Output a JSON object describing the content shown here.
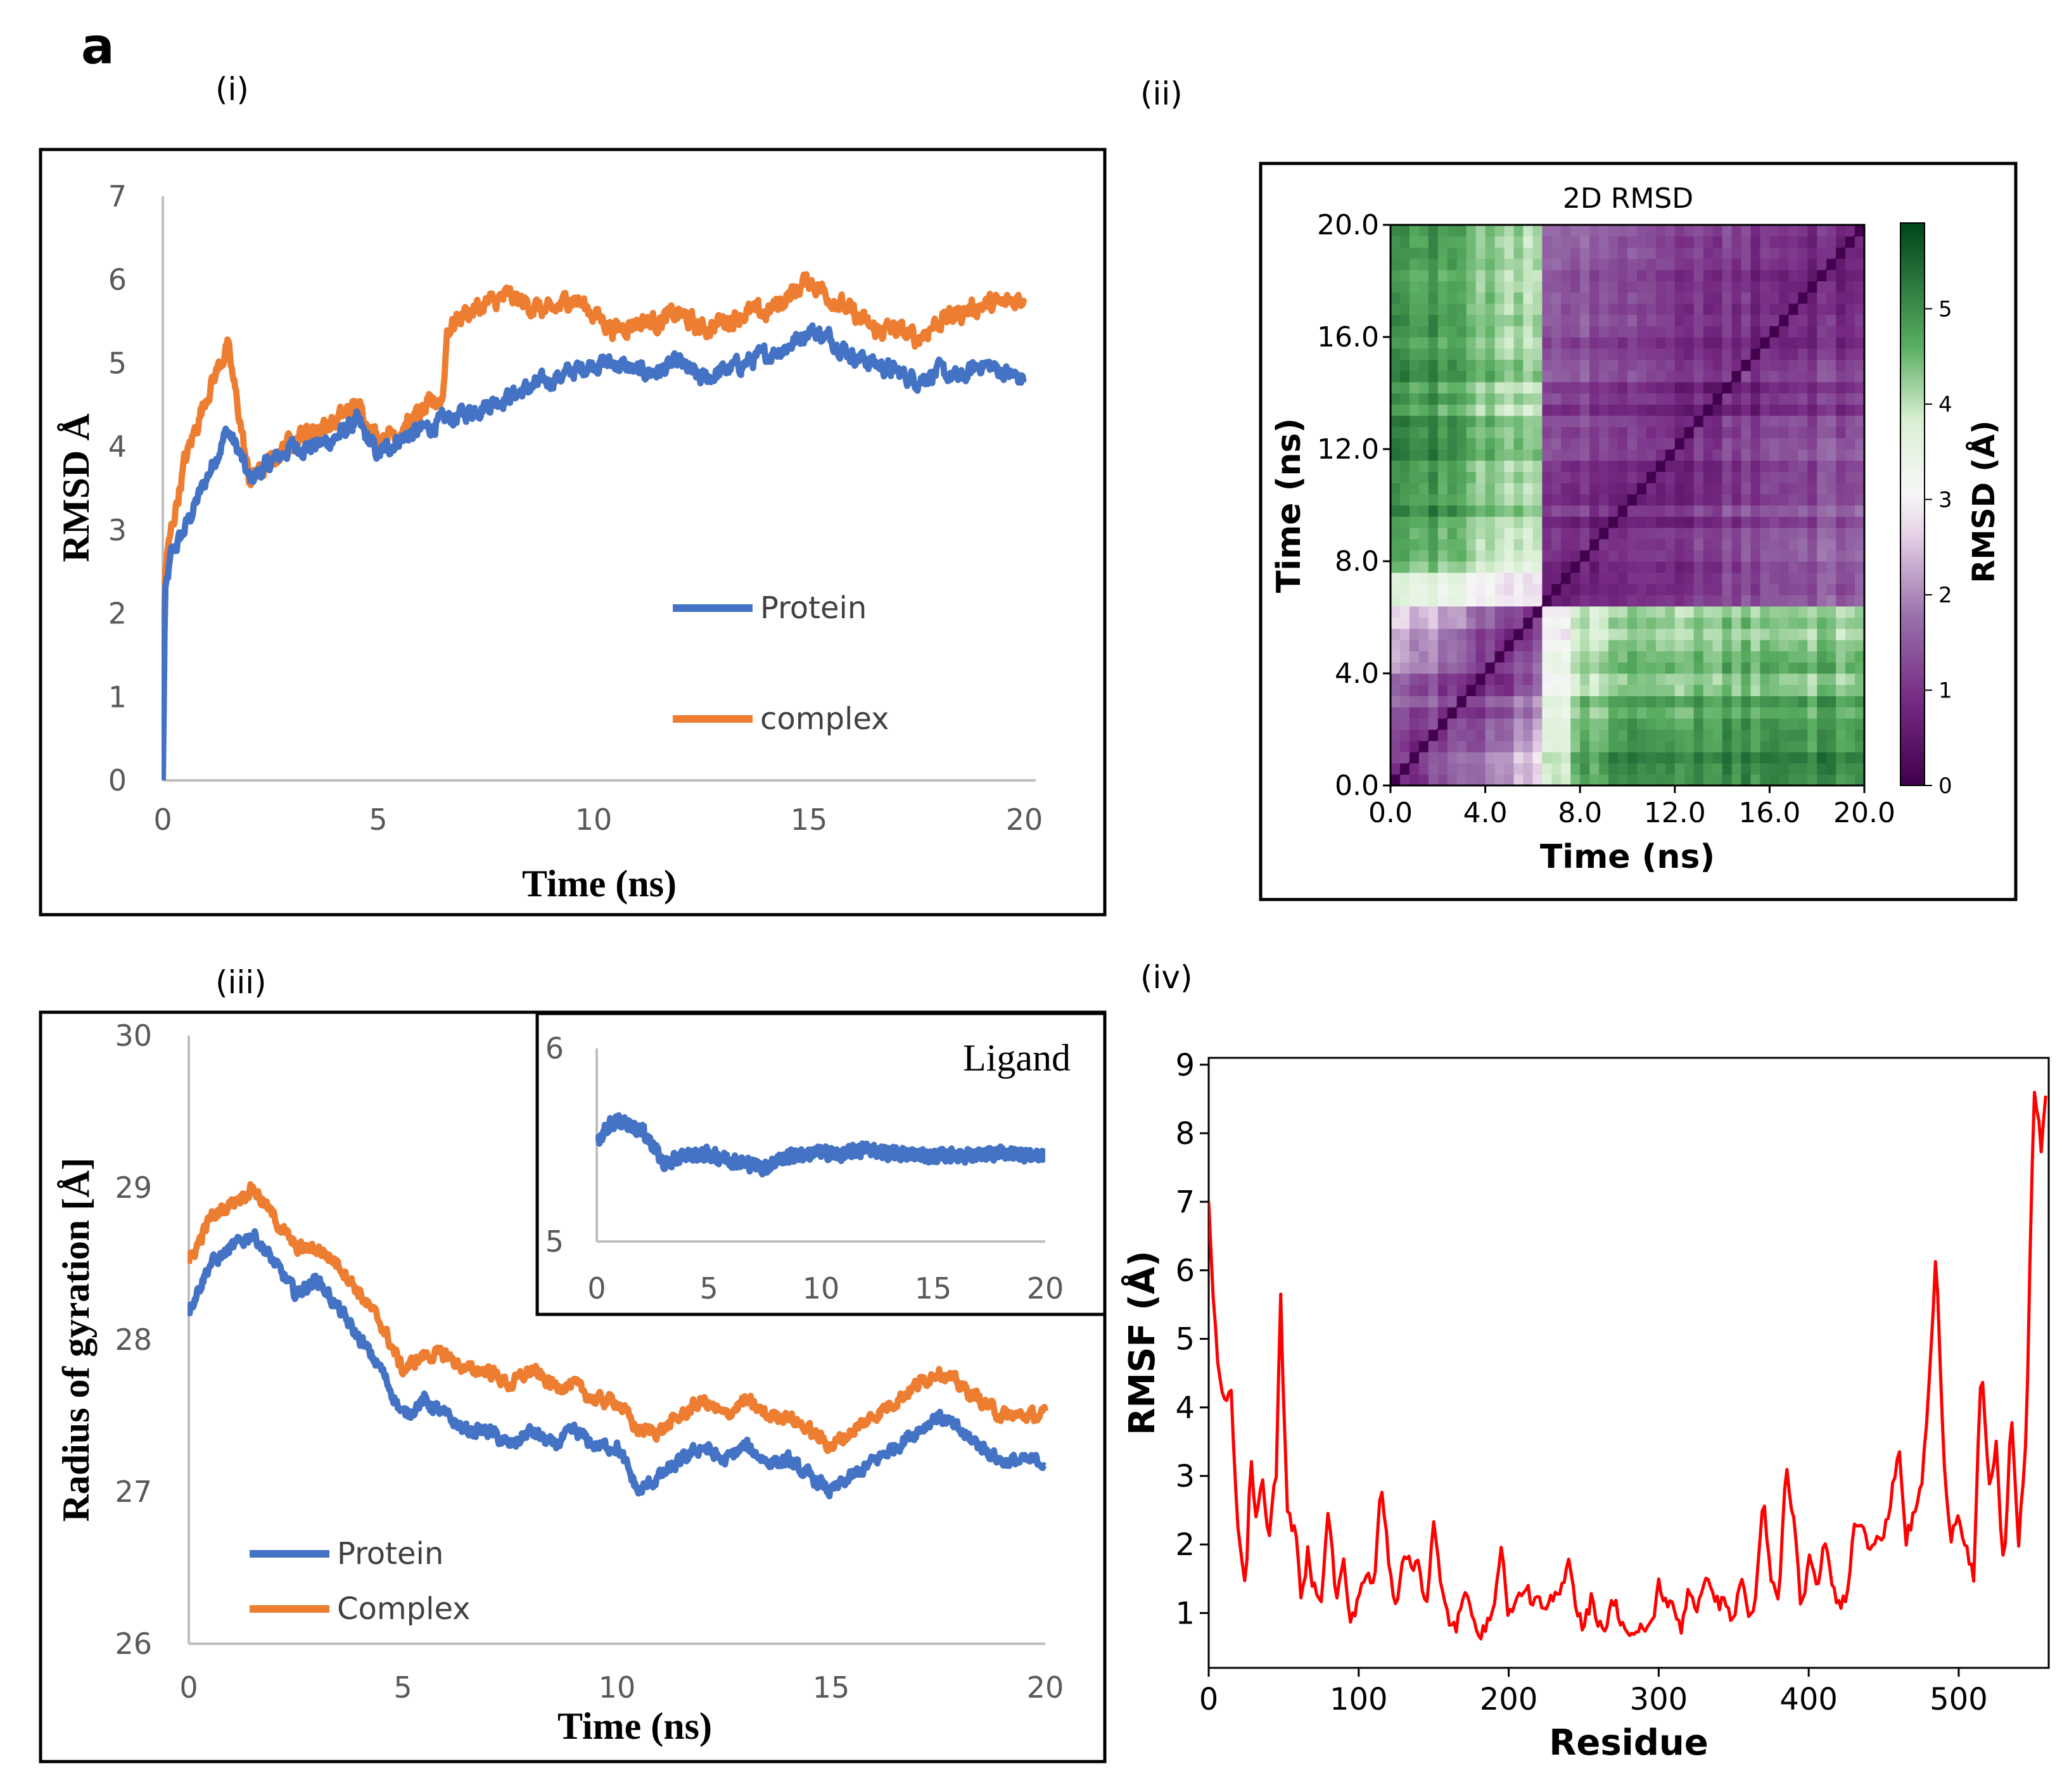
{
  "figure_label": "a",
  "panels": {
    "i": "(i)",
    "ii": "(ii)",
    "iii": "(iii)",
    "iv": "(iv)"
  },
  "colors": {
    "protein": "#4472C4",
    "complex": "#ED7D31",
    "rmsf": "#FF0000",
    "axis_gray": "#BFBFBF",
    "heat_green": "#00441B",
    "heat_purple": "#40004B"
  },
  "chart_data": [
    {
      "id": "rmsd",
      "type": "line",
      "title": "",
      "xlabel": "Time (ns)",
      "ylabel": "RMSD Å",
      "xlim": [
        0,
        20
      ],
      "ylim": [
        0,
        7
      ],
      "xticks": [
        "0",
        "5",
        "10",
        "15",
        "20"
      ],
      "yticks": [
        "0",
        "1",
        "2",
        "3",
        "4",
        "5",
        "6",
        "7"
      ],
      "legend": "center-right",
      "series": [
        {
          "name": "Protein",
          "color": "#4472C4",
          "x": [
            0,
            0.05,
            0.2,
            0.5,
            1.0,
            1.5,
            1.8,
            2.0,
            2.5,
            3.0,
            3.5,
            4.0,
            4.5,
            5.0,
            5.5,
            6.0,
            6.5,
            7.0,
            7.5,
            8.0,
            8.5,
            9.0,
            9.5,
            10.0,
            10.5,
            11.0,
            11.5,
            12.0,
            12.5,
            13.0,
            13.5,
            14.0,
            14.5,
            15.0,
            15.5,
            16.0,
            16.5,
            17.0,
            17.5,
            18.0,
            18.5,
            19.0,
            19.5,
            20.0
          ],
          "y": [
            0,
            2.2,
            2.7,
            3.0,
            3.6,
            4.2,
            3.9,
            3.6,
            3.8,
            4.0,
            4.0,
            4.1,
            4.3,
            3.9,
            4.1,
            4.2,
            4.3,
            4.4,
            4.5,
            4.6,
            4.7,
            4.8,
            4.9,
            5.0,
            5.0,
            4.9,
            4.9,
            5.0,
            4.8,
            4.9,
            5.0,
            5.1,
            5.2,
            5.4,
            5.3,
            5.1,
            5.0,
            4.9,
            4.8,
            4.9,
            4.8,
            5.0,
            4.9,
            4.8
          ]
        },
        {
          "name": "complex",
          "color": "#ED7D31",
          "x": [
            0,
            0.05,
            0.2,
            0.5,
            1.0,
            1.5,
            1.8,
            2.0,
            2.5,
            3.0,
            3.5,
            4.0,
            4.5,
            5.0,
            5.5,
            6.0,
            6.5,
            6.6,
            7.0,
            7.5,
            8.0,
            8.5,
            9.0,
            9.5,
            10.0,
            10.5,
            11.0,
            11.5,
            12.0,
            12.5,
            13.0,
            13.5,
            14.0,
            14.5,
            15.0,
            15.5,
            16.0,
            16.5,
            17.0,
            17.5,
            18.0,
            18.5,
            19.0,
            19.5,
            20.0
          ],
          "y": [
            0,
            2.5,
            3.0,
            3.8,
            4.6,
            5.2,
            4.3,
            3.6,
            3.8,
            4.1,
            4.2,
            4.3,
            4.5,
            4.1,
            4.2,
            4.4,
            4.6,
            5.4,
            5.6,
            5.7,
            5.8,
            5.7,
            5.6,
            5.8,
            5.6,
            5.4,
            5.5,
            5.5,
            5.6,
            5.4,
            5.5,
            5.6,
            5.6,
            5.8,
            6.0,
            5.8,
            5.6,
            5.4,
            5.4,
            5.3,
            5.5,
            5.6,
            5.7,
            5.7,
            5.8
          ]
        }
      ]
    },
    {
      "id": "rmsd2d",
      "type": "heatmap",
      "title": "2D RMSD",
      "xlabel": "Time (ns)",
      "ylabel": "Time (ns)",
      "xlim": [
        0,
        20
      ],
      "ylim": [
        0,
        20
      ],
      "xticks": [
        "0.0",
        "4.0",
        "8.0",
        "12.0",
        "16.0",
        "20.0"
      ],
      "yticks": [
        "0.0",
        "4.0",
        "8.0",
        "12.0",
        "16.0",
        "20.0"
      ],
      "colorbar": {
        "label": "RMSD (Å)",
        "min": 0,
        "max": 5.9,
        "ticks": [
          "0",
          "1",
          "2",
          "3",
          "4",
          "5"
        ]
      },
      "description_blocks": [
        {
          "i": [
            0,
            6.5
          ],
          "j": [
            6.5,
            20
          ],
          "level": "high"
        },
        {
          "i": [
            0,
            6.5
          ],
          "j": [
            0,
            6.5
          ],
          "level": "low"
        },
        {
          "i": [
            6.5,
            20
          ],
          "j": [
            6.5,
            20
          ],
          "level": "low"
        }
      ]
    },
    {
      "id": "rg",
      "type": "line",
      "title": "",
      "xlabel": "Time (ns)",
      "ylabel": "Radius of gyration [Å]",
      "xlim": [
        0,
        20
      ],
      "ylim": [
        26,
        30
      ],
      "xticks": [
        "0",
        "5",
        "10",
        "15",
        "20"
      ],
      "yticks": [
        "26",
        "27",
        "28",
        "29",
        "30"
      ],
      "legend": "bottom-left",
      "series": [
        {
          "name": "Protein",
          "color": "#4472C4",
          "x": [
            0,
            0.5,
            1.0,
            1.5,
            2.0,
            2.5,
            3.0,
            3.5,
            4.0,
            4.5,
            5.0,
            5.5,
            6.0,
            6.5,
            7.0,
            7.5,
            8.0,
            8.5,
            9.0,
            9.5,
            10.0,
            10.5,
            11.0,
            11.5,
            12.0,
            12.5,
            13.0,
            13.5,
            14.0,
            14.5,
            15.0,
            15.5,
            16.0,
            16.5,
            17.0,
            17.5,
            18.0,
            18.5,
            19.0,
            19.5,
            20.0
          ],
          "y": [
            28.2,
            28.5,
            28.6,
            28.7,
            28.5,
            28.3,
            28.4,
            28.2,
            28.0,
            27.8,
            27.5,
            27.6,
            27.5,
            27.4,
            27.4,
            27.3,
            27.4,
            27.3,
            27.4,
            27.3,
            27.3,
            27.0,
            27.1,
            27.2,
            27.3,
            27.2,
            27.3,
            27.2,
            27.2,
            27.1,
            27.0,
            27.1,
            27.2,
            27.3,
            27.4,
            27.5,
            27.4,
            27.3,
            27.2,
            27.2,
            27.2
          ]
        },
        {
          "name": "Complex",
          "color": "#ED7D31",
          "x": [
            0,
            0.5,
            1.0,
            1.5,
            2.0,
            2.5,
            3.0,
            3.5,
            4.0,
            4.5,
            5.0,
            5.5,
            6.0,
            6.5,
            7.0,
            7.5,
            8.0,
            8.5,
            9.0,
            9.5,
            10.0,
            10.5,
            11.0,
            11.5,
            12.0,
            12.5,
            13.0,
            13.5,
            14.0,
            14.5,
            15.0,
            15.5,
            16.0,
            16.5,
            17.0,
            17.5,
            18.0,
            18.5,
            19.0,
            19.5,
            20.0
          ],
          "y": [
            28.5,
            28.8,
            28.9,
            29.0,
            28.8,
            28.6,
            28.6,
            28.5,
            28.3,
            28.1,
            27.8,
            27.9,
            27.9,
            27.8,
            27.8,
            27.7,
            27.8,
            27.7,
            27.7,
            27.6,
            27.6,
            27.4,
            27.4,
            27.5,
            27.6,
            27.5,
            27.6,
            27.5,
            27.5,
            27.4,
            27.3,
            27.4,
            27.5,
            27.6,
            27.7,
            27.8,
            27.7,
            27.6,
            27.5,
            27.5,
            27.5
          ]
        }
      ]
    },
    {
      "id": "rg_ligand_inset",
      "type": "line",
      "title": "Ligand",
      "xlim": [
        0,
        20
      ],
      "ylim": [
        5,
        6
      ],
      "xticks": [
        "0",
        "5",
        "10",
        "15",
        "20"
      ],
      "yticks": [
        "5",
        "6"
      ],
      "series": [
        {
          "name": "Ligand",
          "color": "#4472C4",
          "x": [
            0,
            0.5,
            1.0,
            1.5,
            2.0,
            2.5,
            3.0,
            3.5,
            4.0,
            5.0,
            6.0,
            7.0,
            7.5,
            8.0,
            9.0,
            10.0,
            11.0,
            12.0,
            13.0,
            14.0,
            15.0,
            16.0,
            17.0,
            18.0,
            19.0,
            20.0
          ],
          "y": [
            5.52,
            5.6,
            5.62,
            5.6,
            5.58,
            5.5,
            5.4,
            5.42,
            5.45,
            5.45,
            5.42,
            5.4,
            5.38,
            5.42,
            5.45,
            5.46,
            5.45,
            5.48,
            5.46,
            5.45,
            5.44,
            5.45,
            5.44,
            5.46,
            5.45,
            5.44
          ]
        }
      ]
    },
    {
      "id": "rmsf",
      "type": "line",
      "title": "",
      "xlabel": "Residue",
      "ylabel": "RMSF (Å)",
      "xlim": [
        0,
        560
      ],
      "ylim": [
        0.2,
        9.1
      ],
      "xticks": [
        "0",
        "100",
        "200",
        "300",
        "400",
        "500"
      ],
      "yticks": [
        "1",
        "2",
        "3",
        "4",
        "5",
        "6",
        "7",
        "8",
        "9"
      ],
      "series": [
        {
          "name": "RMSF",
          "color": "#FF0000",
          "x": [
            0,
            3,
            6,
            10,
            15,
            20,
            25,
            28,
            32,
            36,
            40,
            45,
            48,
            52,
            58,
            62,
            66,
            70,
            75,
            80,
            85,
            90,
            95,
            100,
            105,
            110,
            115,
            120,
            125,
            130,
            135,
            140,
            145,
            150,
            155,
            160,
            165,
            170,
            175,
            180,
            185,
            190,
            195,
            200,
            205,
            210,
            215,
            220,
            225,
            230,
            235,
            240,
            245,
            250,
            255,
            260,
            265,
            270,
            275,
            280,
            285,
            290,
            295,
            300,
            305,
            310,
            315,
            320,
            325,
            330,
            335,
            340,
            345,
            350,
            355,
            360,
            365,
            370,
            375,
            380,
            385,
            390,
            395,
            400,
            405,
            410,
            415,
            420,
            425,
            430,
            435,
            440,
            445,
            450,
            455,
            460,
            465,
            470,
            475,
            480,
            485,
            490,
            495,
            500,
            505,
            510,
            515,
            520,
            525,
            530,
            535,
            540,
            545,
            550,
            555,
            558
          ],
          "y": [
            7.0,
            5.6,
            4.7,
            4.0,
            4.2,
            2.0,
            1.5,
            3.4,
            2.3,
            2.9,
            2.2,
            3.0,
            5.6,
            2.6,
            2.1,
            1.1,
            1.9,
            1.4,
            1.3,
            2.5,
            1.2,
            1.7,
            0.8,
            1.3,
            1.6,
            1.3,
            2.9,
            1.8,
            1.1,
            2.0,
            1.6,
            1.8,
            1.1,
            2.3,
            1.3,
            0.9,
            0.8,
            1.2,
            1.1,
            0.8,
            0.7,
            1.2,
            1.9,
            1.0,
            1.1,
            1.4,
            1.2,
            1.1,
            1.0,
            1.2,
            1.3,
            1.9,
            1.1,
            0.8,
            1.2,
            0.9,
            0.8,
            1.2,
            0.9,
            0.7,
            0.6,
            0.8,
            0.8,
            1.4,
            1.2,
            1.0,
            0.8,
            1.4,
            1.1,
            1.3,
            1.5,
            1.1,
            1.2,
            0.8,
            1.6,
            0.9,
            1.3,
            2.6,
            1.4,
            1.2,
            3.1,
            2.4,
            1.0,
            1.8,
            1.3,
            2.0,
            1.5,
            1.1,
            1.3,
            2.2,
            2.4,
            2.0,
            2.2,
            2.1,
            2.6,
            3.5,
            2.1,
            2.4,
            2.8,
            4.2,
            6.3,
            3.1,
            2.2,
            2.5,
            2.0,
            1.5,
            4.6,
            2.8,
            3.4,
            1.6,
            3.9,
            2.0,
            3.5,
            8.6,
            7.8,
            8.5
          ]
        }
      ]
    }
  ]
}
